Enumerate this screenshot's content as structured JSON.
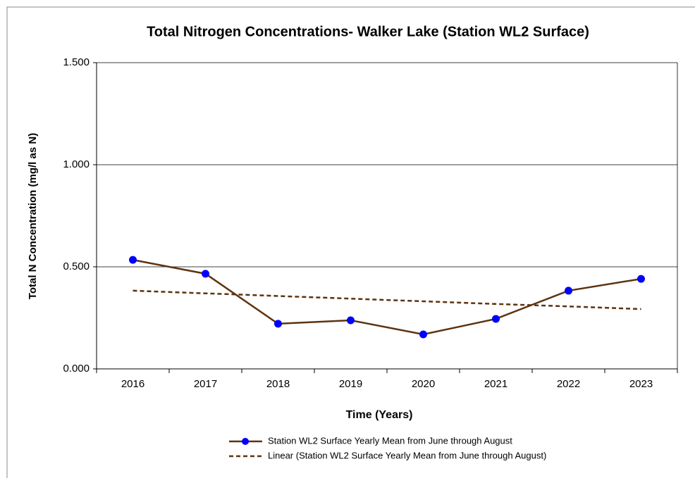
{
  "chart_data": {
    "type": "line",
    "title": "Total Nitrogen Concentrations- Walker Lake (Station WL2 Surface)",
    "x_label": "Time (Years)",
    "y_label": "Total N Concentration (mg/l as N)",
    "categories": [
      "2016",
      "2017",
      "2018",
      "2019",
      "2020",
      "2021",
      "2022",
      "2023"
    ],
    "series": [
      {
        "name": "Station WL2 Surface Yearly Mean from June through August",
        "color": "#5c3310",
        "marker_color": "#0000ff",
        "dashed": false,
        "values": [
          0.534,
          0.466,
          0.221,
          0.238,
          0.169,
          0.245,
          0.383,
          0.441
        ]
      },
      {
        "name": "Linear (Station WL2 Surface Yearly Mean from June through August)",
        "color": "#5c3310",
        "dashed": true,
        "values": [
          0.383,
          0.37,
          0.357,
          0.344,
          0.331,
          0.318,
          0.306,
          0.293
        ]
      }
    ],
    "ylim": [
      0,
      1.5
    ],
    "yticks": [
      {
        "value": 0,
        "label": "0.000"
      },
      {
        "value": 0.5,
        "label": "0.500"
      },
      {
        "value": 1,
        "label": "1.000"
      },
      {
        "value": 1.5,
        "label": "1.500"
      }
    ],
    "grid": true,
    "legend": "bottom"
  }
}
